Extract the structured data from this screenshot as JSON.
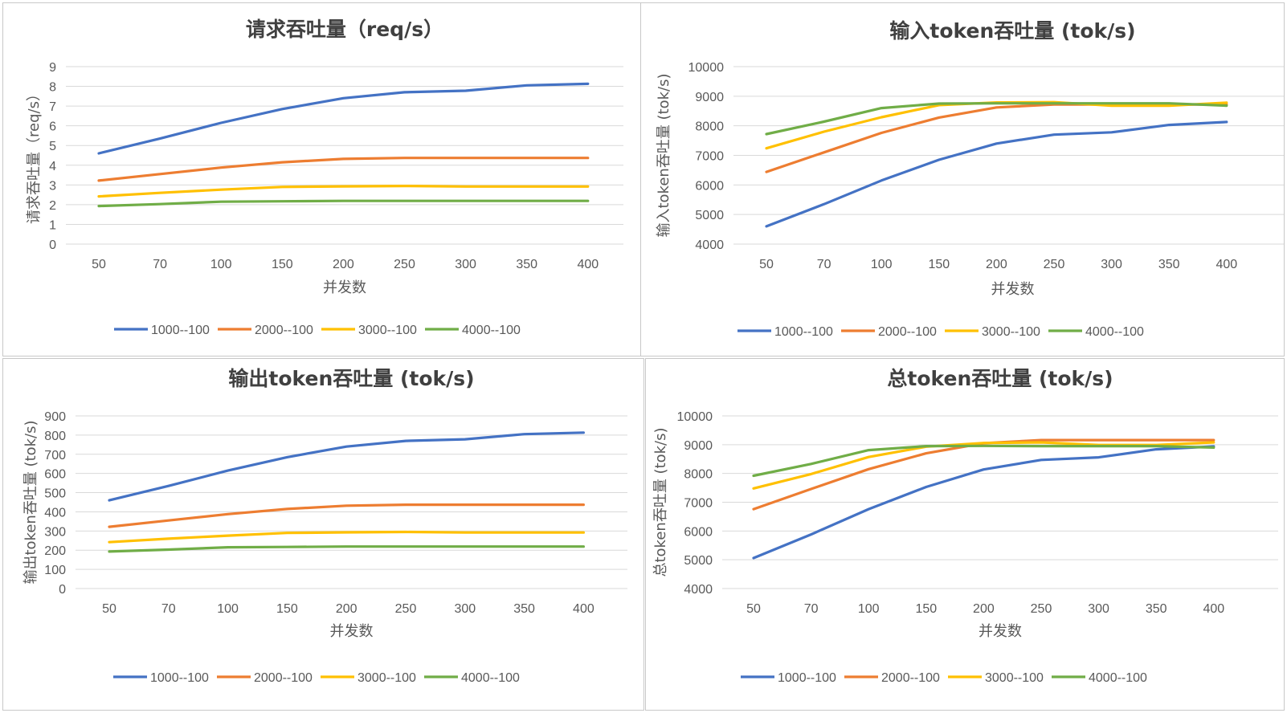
{
  "chart_data": [
    {
      "type": "line",
      "title": "请求吞吐量（req/s）",
      "xlabel": "并发数",
      "ylabel": "请求吞吐量（req/s）",
      "categories": [
        "50",
        "70",
        "100",
        "150",
        "200",
        "250",
        "300",
        "350",
        "400"
      ],
      "ylim": [
        0,
        9
      ],
      "yticks": [
        0,
        1,
        2,
        3,
        4,
        5,
        6,
        7,
        8,
        9
      ],
      "grid": true,
      "legend": "bottom",
      "series": [
        {
          "name": "1000--100",
          "color": "#4472c4",
          "values": [
            4.6,
            5.35,
            6.15,
            6.85,
            7.4,
            7.7,
            7.78,
            8.05,
            8.13
          ]
        },
        {
          "name": "2000--100",
          "color": "#ed7d31",
          "values": [
            3.22,
            3.55,
            3.88,
            4.15,
            4.32,
            4.37,
            4.37,
            4.37,
            4.37
          ]
        },
        {
          "name": "3000--100",
          "color": "#ffc000",
          "values": [
            2.42,
            2.6,
            2.76,
            2.9,
            2.93,
            2.95,
            2.92,
            2.92,
            2.92
          ]
        },
        {
          "name": "4000--100",
          "color": "#70ad47",
          "values": [
            1.93,
            2.03,
            2.15,
            2.17,
            2.19,
            2.19,
            2.19,
            2.19,
            2.19
          ]
        }
      ]
    },
    {
      "type": "line",
      "title": "输入token吞吐量 (tok/s)",
      "xlabel": "并发数",
      "ylabel": "输入token吞吐量 (tok/s)",
      "categories": [
        "50",
        "70",
        "100",
        "150",
        "200",
        "250",
        "300",
        "350",
        "400"
      ],
      "ylim": [
        4000,
        10000
      ],
      "yticks": [
        4000,
        5000,
        6000,
        7000,
        8000,
        9000,
        10000
      ],
      "grid": true,
      "legend": "bottom",
      "series": [
        {
          "name": "1000--100",
          "color": "#4472c4",
          "values": [
            4600,
            5350,
            6150,
            6850,
            7400,
            7700,
            7780,
            8030,
            8130
          ]
        },
        {
          "name": "2000--100",
          "color": "#ed7d31",
          "values": [
            6440,
            7100,
            7760,
            8280,
            8620,
            8720,
            8720,
            8720,
            8720
          ]
        },
        {
          "name": "3000--100",
          "color": "#ffc000",
          "values": [
            7240,
            7800,
            8290,
            8700,
            8790,
            8800,
            8680,
            8680,
            8780
          ]
        },
        {
          "name": "4000--100",
          "color": "#70ad47",
          "values": [
            7720,
            8140,
            8600,
            8750,
            8760,
            8760,
            8760,
            8760,
            8680
          ]
        }
      ]
    },
    {
      "type": "line",
      "title": "输出token吞吐量 (tok/s)",
      "xlabel": "并发数",
      "ylabel": "输出token吞吐量 (tok/s)",
      "categories": [
        "50",
        "70",
        "100",
        "150",
        "200",
        "250",
        "300",
        "350",
        "400"
      ],
      "ylim": [
        0,
        900
      ],
      "yticks": [
        0,
        100,
        200,
        300,
        400,
        500,
        600,
        700,
        800,
        900
      ],
      "grid": true,
      "legend": "bottom",
      "series": [
        {
          "name": "1000--100",
          "color": "#4472c4",
          "values": [
            460,
            535,
            615,
            685,
            740,
            770,
            778,
            805,
            813
          ]
        },
        {
          "name": "2000--100",
          "color": "#ed7d31",
          "values": [
            322,
            355,
            388,
            415,
            432,
            437,
            437,
            437,
            437
          ]
        },
        {
          "name": "3000--100",
          "color": "#ffc000",
          "values": [
            242,
            260,
            276,
            290,
            293,
            295,
            292,
            292,
            292
          ]
        },
        {
          "name": "4000--100",
          "color": "#70ad47",
          "values": [
            193,
            203,
            215,
            217,
            219,
            219,
            219,
            219,
            219
          ]
        }
      ]
    },
    {
      "type": "line",
      "title": "总token吞吐量 (tok/s)",
      "xlabel": "并发数",
      "ylabel": "总token吞吐量 (tok/s)",
      "categories": [
        "50",
        "70",
        "100",
        "150",
        "200",
        "250",
        "300",
        "350",
        "400"
      ],
      "ylim": [
        4000,
        10000
      ],
      "yticks": [
        4000,
        5000,
        6000,
        7000,
        8000,
        9000,
        10000
      ],
      "grid": true,
      "legend": "bottom",
      "series": [
        {
          "name": "1000--100",
          "color": "#4472c4",
          "values": [
            5060,
            5880,
            6760,
            7530,
            8140,
            8470,
            8560,
            8840,
            8940
          ]
        },
        {
          "name": "2000--100",
          "color": "#ed7d31",
          "values": [
            6760,
            7460,
            8150,
            8700,
            9050,
            9160,
            9160,
            9160,
            9160
          ]
        },
        {
          "name": "3000--100",
          "color": "#ffc000",
          "values": [
            7480,
            7980,
            8570,
            8930,
            9060,
            9080,
            8990,
            8990,
            9080
          ]
        },
        {
          "name": "4000--100",
          "color": "#70ad47",
          "values": [
            7920,
            8330,
            8810,
            8950,
            8960,
            8950,
            8950,
            8950,
            8900
          ]
        }
      ]
    }
  ]
}
